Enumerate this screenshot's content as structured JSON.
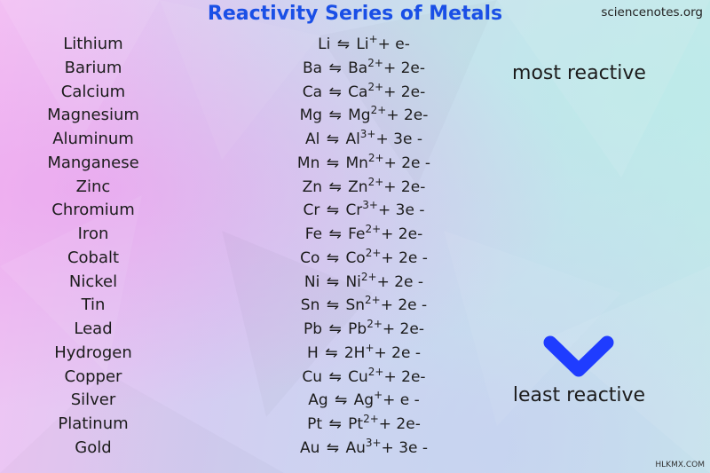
{
  "header": {
    "title": "Reactivity Series of Metals",
    "source": "sciencenotes.org"
  },
  "labels": {
    "most": "most reactive",
    "least": "least reactive"
  },
  "rows": [
    {
      "metal": "Lithium",
      "symbol": "Li",
      "ion": "Li",
      "charge": "+",
      "rest": "+ e-"
    },
    {
      "metal": "Barium",
      "symbol": "Ba",
      "ion": "Ba",
      "charge": "2+",
      "rest": "+ 2e-"
    },
    {
      "metal": "Calcium",
      "symbol": "Ca",
      "ion": "Ca",
      "charge": "2+",
      "rest": "+ 2e-"
    },
    {
      "metal": "Magnesium",
      "symbol": "Mg",
      "ion": "Mg",
      "charge": "2+",
      "rest": "+ 2e-"
    },
    {
      "metal": "Aluminum",
      "symbol": "Al",
      "ion": "Al",
      "charge": "3+",
      "rest": "+ 3e -"
    },
    {
      "metal": "Manganese",
      "symbol": "Mn",
      "ion": "Mn",
      "charge": "2+",
      "rest": "+ 2e -"
    },
    {
      "metal": "Zinc",
      "symbol": "Zn",
      "ion": "Zn",
      "charge": "2+",
      "rest": "+ 2e-"
    },
    {
      "metal": "Chromium",
      "symbol": "Cr",
      "ion": "Cr",
      "charge": "3+",
      "rest": "+ 3e -"
    },
    {
      "metal": "Iron",
      "symbol": "Fe",
      "ion": "Fe",
      "charge": "2+",
      "rest": "+ 2e-"
    },
    {
      "metal": "Cobalt",
      "symbol": "Co",
      "ion": "Co",
      "charge": "2+",
      "rest": "+ 2e -"
    },
    {
      "metal": "Nickel",
      "symbol": "Ni",
      "ion": "Ni",
      "charge": "2+",
      "rest": "+ 2e -"
    },
    {
      "metal": "Tin",
      "symbol": "Sn",
      "ion": "Sn",
      "charge": "2+",
      "rest": "+ 2e -"
    },
    {
      "metal": "Lead",
      "symbol": "Pb",
      "ion": "Pb",
      "charge": "2+",
      "rest": "+ 2e-"
    },
    {
      "metal": "Hydrogen",
      "symbol": "H",
      "ion": "2H",
      "charge": "+",
      "rest": "+ 2e -"
    },
    {
      "metal": "Copper",
      "symbol": "Cu",
      "ion": "Cu",
      "charge": "2+",
      "rest": "+ 2e-"
    },
    {
      "metal": "Silver",
      "symbol": "Ag",
      "ion": "Ag",
      "charge": "+",
      "rest": "+ e -"
    },
    {
      "metal": "Platinum",
      "symbol": "Pt",
      "ion": "Pt",
      "charge": "2+",
      "rest": "+ 2e-"
    },
    {
      "metal": "Gold",
      "symbol": "Au",
      "ion": "Au",
      "charge": "3+",
      "rest": "+ 3e -"
    }
  ],
  "equilibrium_symbol": "⇋",
  "arrow": {
    "top_color": "#d81b5a",
    "bottom_color": "#1f3cff"
  },
  "watermark": "HLKMX.COM"
}
